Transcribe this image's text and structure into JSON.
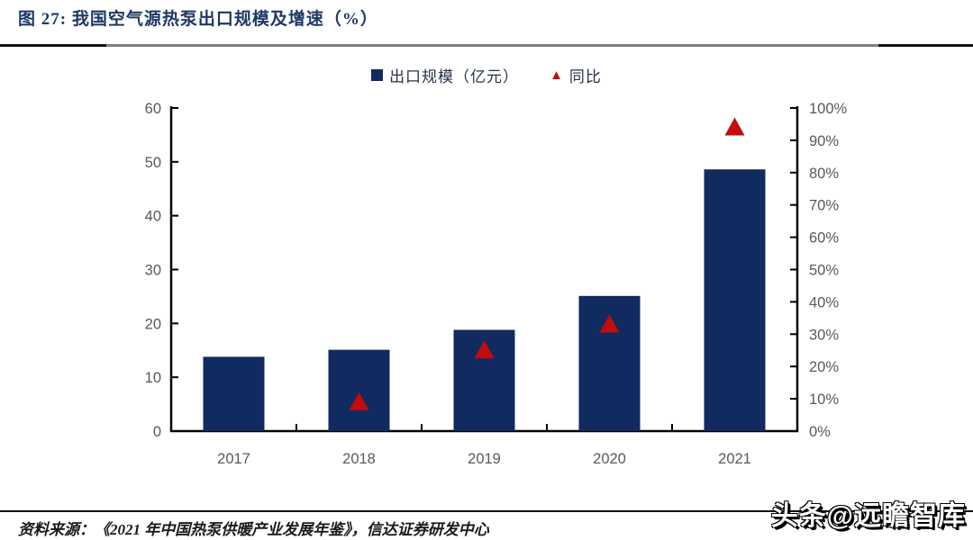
{
  "figure": {
    "title": "图 27: 我国空气源热泵出口规模及增速（%）",
    "source": "资料来源：《2021 年中国热泵供暖产业发展年鉴》，信达证券研发中心",
    "watermark": "头条@远瞻智库"
  },
  "legend": {
    "bar_label": "出口规模（亿元）",
    "marker_label": "同比"
  },
  "colors": {
    "bar": "#112a60",
    "marker": "#c00d0d",
    "title": "#1f3864",
    "axis": "#000000",
    "tick_label": "#595959",
    "legend_text": "#26324b"
  },
  "chart_data": {
    "type": "bar",
    "title": "图 27: 我国空气源热泵出口规模及增速（%）",
    "categories": [
      "2017",
      "2018",
      "2019",
      "2020",
      "2021"
    ],
    "series": [
      {
        "name": "出口规模（亿元）",
        "type": "bar",
        "axis": "left",
        "values": [
          13.8,
          15.1,
          18.8,
          25.1,
          48.6
        ]
      },
      {
        "name": "同比",
        "type": "scatter",
        "marker": "triangle",
        "axis": "right",
        "values": [
          null,
          9,
          25,
          33,
          94
        ],
        "unit": "%"
      }
    ],
    "left_axis": {
      "min": 0,
      "max": 60,
      "step": 10
    },
    "right_axis": {
      "min": 0,
      "max": 100,
      "step": 10,
      "suffix": "%"
    },
    "grid": false,
    "legend_position": "top"
  }
}
